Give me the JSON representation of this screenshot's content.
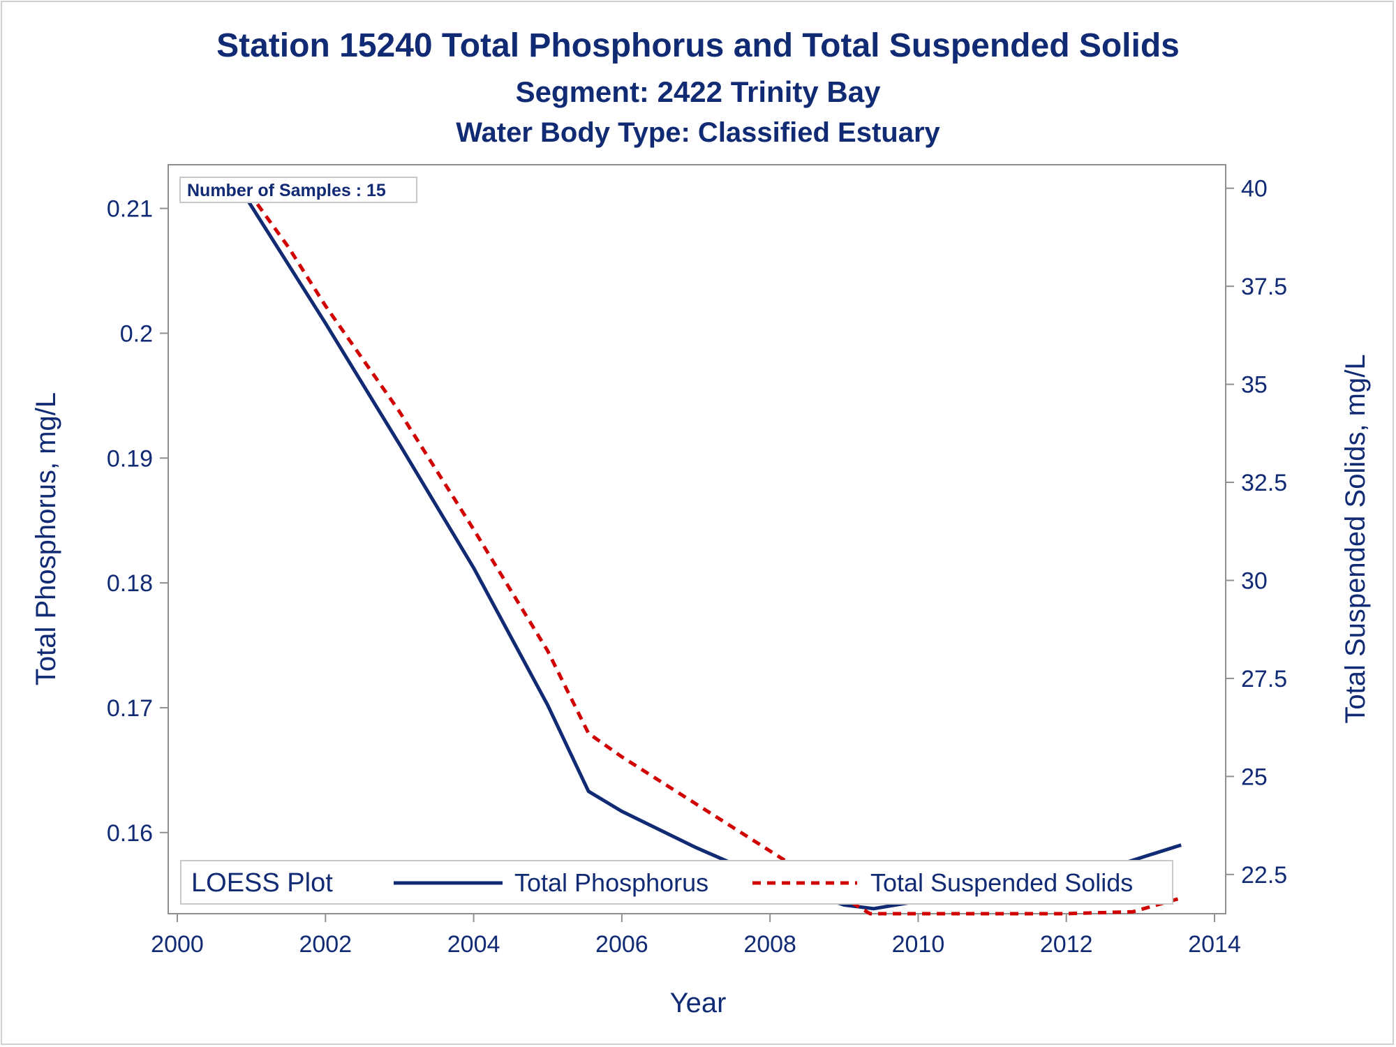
{
  "titles": {
    "line1": "Station 15240  Total Phosphorus and Total Suspended Solids",
    "line2": "Segment: 2422  Trinity Bay",
    "line3": "Water Body Type: Classified Estuary"
  },
  "inset_label": "Number of Samples : 15",
  "legend": {
    "title": "LOESS Plot",
    "phosphorus_label": "Total Phosphorus",
    "tss_label": "Total Suspended Solids"
  },
  "colors": {
    "text": "#112a74",
    "phosphorus": "#112a74",
    "tss": "#d10000",
    "axis": "#8f8f8f"
  },
  "chart_data": {
    "type": "line",
    "title": "Station 15240  Total Phosphorus and Total Suspended Solids",
    "subtitle": [
      "Segment: 2422  Trinity Bay",
      "Water Body Type: Classified Estuary"
    ],
    "xlabel": "Year",
    "ylabel_left": "Total Phosphorus, mg/L",
    "ylabel_right": "Total Suspended Solids, mg/L",
    "xlim": [
      2000,
      2014
    ],
    "x_ticks": [
      "2000",
      "2002",
      "2004",
      "2006",
      "2008",
      "2010",
      "2012",
      "2014"
    ],
    "ylim_left": [
      0.1535,
      0.2135
    ],
    "y_ticks_left": [
      "0.16",
      "0.17",
      "0.18",
      "0.19",
      "0.2",
      "0.21"
    ],
    "ylim_right": [
      21.5,
      40.6
    ],
    "y_ticks_right": [
      "22.5",
      "25",
      "27.5",
      "30",
      "32.5",
      "35",
      "37.5",
      "40"
    ],
    "grid": false,
    "legend_position": "bottom-inside",
    "series": [
      {
        "name": "Total Phosphorus",
        "axis": "left",
        "style": "solid",
        "x": [
          2000.85,
          2001.5,
          2002.0,
          2003.0,
          2004.0,
          2005.0,
          2005.55,
          2006.0,
          2007.0,
          2008.0,
          2009.0,
          2009.4,
          2010.0,
          2011.0,
          2012.0,
          2012.8,
          2013.55
        ],
        "y": [
          0.2116,
          0.2055,
          0.2008,
          0.1911,
          0.1812,
          0.1702,
          0.1633,
          0.1617,
          0.1588,
          0.1562,
          0.1542,
          0.1539,
          0.1545,
          0.1556,
          0.1567,
          0.1576,
          0.159
        ]
      },
      {
        "name": "Total Suspended Solids",
        "axis": "right",
        "style": "dashed",
        "x": [
          2000.85,
          2001.5,
          2002.0,
          2003.0,
          2004.0,
          2005.0,
          2005.55,
          2006.0,
          2007.0,
          2008.0,
          2009.0,
          2009.35,
          2010.0,
          2011.0,
          2012.0,
          2012.9,
          2013.55
        ],
        "y": [
          40.2,
          38.5,
          37.0,
          34.3,
          31.3,
          28.2,
          26.1,
          25.5,
          24.3,
          23.1,
          21.9,
          21.5,
          21.5,
          21.5,
          21.5,
          21.55,
          21.9
        ]
      }
    ]
  }
}
